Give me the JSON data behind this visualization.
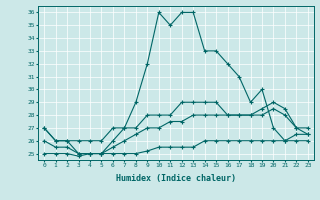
{
  "xlabel": "Humidex (Indice chaleur)",
  "bg_color": "#cce8e8",
  "line_color": "#006666",
  "xlim": [
    -0.5,
    23.5
  ],
  "ylim": [
    24.5,
    36.5
  ],
  "yticks": [
    25,
    26,
    27,
    28,
    29,
    30,
    31,
    32,
    33,
    34,
    35,
    36
  ],
  "xticks": [
    0,
    1,
    2,
    3,
    4,
    5,
    6,
    7,
    8,
    9,
    10,
    11,
    12,
    13,
    14,
    15,
    16,
    17,
    18,
    19,
    20,
    21,
    22,
    23
  ],
  "series": [
    {
      "x": [
        0,
        1,
        2,
        3,
        4,
        5,
        6,
        7,
        8,
        9,
        10,
        11,
        12,
        13,
        14,
        15,
        16,
        17,
        18,
        19,
        20,
        21,
        22,
        23
      ],
      "y": [
        27,
        26,
        26,
        25,
        25,
        25,
        26,
        27,
        29,
        32,
        36,
        35,
        36,
        36,
        33,
        33,
        32,
        31,
        29,
        30,
        27,
        26,
        26,
        26
      ]
    },
    {
      "x": [
        0,
        1,
        2,
        3,
        4,
        5,
        6,
        7,
        8,
        9,
        10,
        11,
        12,
        13,
        14,
        15,
        16,
        17,
        18,
        19,
        20,
        21,
        22,
        23
      ],
      "y": [
        27,
        26,
        26,
        26,
        26,
        26,
        27,
        27,
        27,
        28,
        28,
        28,
        29,
        29,
        29,
        29,
        28,
        28,
        28,
        28.5,
        29,
        28.5,
        27,
        27
      ]
    },
    {
      "x": [
        0,
        1,
        2,
        3,
        4,
        5,
        6,
        7,
        8,
        9,
        10,
        11,
        12,
        13,
        14,
        15,
        16,
        17,
        18,
        19,
        20,
        21,
        22,
        23
      ],
      "y": [
        26,
        25.5,
        25.5,
        25,
        25,
        25,
        25.5,
        26,
        26.5,
        27,
        27,
        27.5,
        27.5,
        28,
        28,
        28,
        28,
        28,
        28,
        28,
        28.5,
        28,
        27,
        26.5
      ]
    },
    {
      "x": [
        0,
        1,
        2,
        3,
        4,
        5,
        6,
        7,
        8,
        9,
        10,
        11,
        12,
        13,
        14,
        15,
        16,
        17,
        18,
        19,
        20,
        21,
        22,
        23
      ],
      "y": [
        25,
        25,
        25,
        24.8,
        25,
        25,
        25,
        25,
        25,
        25.2,
        25.5,
        25.5,
        25.5,
        25.5,
        26,
        26,
        26,
        26,
        26,
        26,
        26,
        26,
        26.5,
        26.5
      ]
    }
  ]
}
